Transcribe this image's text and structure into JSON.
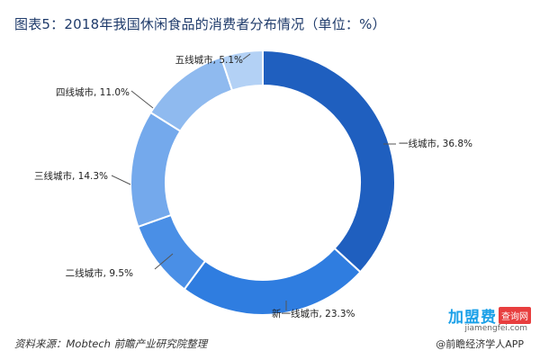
{
  "title": "图表5：2018年我国休闲食品的消费者分布情况（单位：%）",
  "source": "资料来源：Mobtech  前瞻产业研究院整理",
  "footer_right": "@前瞻经济学人APP",
  "watermark": {
    "brand_main": "加盟费",
    "brand_tag": "查询网",
    "url": "jiamengfei.com"
  },
  "chart_data": {
    "type": "pie",
    "donut": true,
    "start": "top, clockwise",
    "slices": [
      {
        "label": "一线城市, 36.8%",
        "value": 36.8,
        "color": "#1f5fbf"
      },
      {
        "label": "新一线城市, 23.3%",
        "value": 23.3,
        "color": "#2f7de0"
      },
      {
        "label": "二线城市, 9.5%",
        "value": 9.5,
        "color": "#4a8fe6"
      },
      {
        "label": "三线城市, 14.3%",
        "value": 14.3,
        "color": "#74a9ec"
      },
      {
        "label": "四线城市, 11.0%",
        "value": 11.0,
        "color": "#8fbaef"
      },
      {
        "label": "五线城市, 5.1%",
        "value": 5.1,
        "color": "#b3d1f5"
      }
    ]
  }
}
